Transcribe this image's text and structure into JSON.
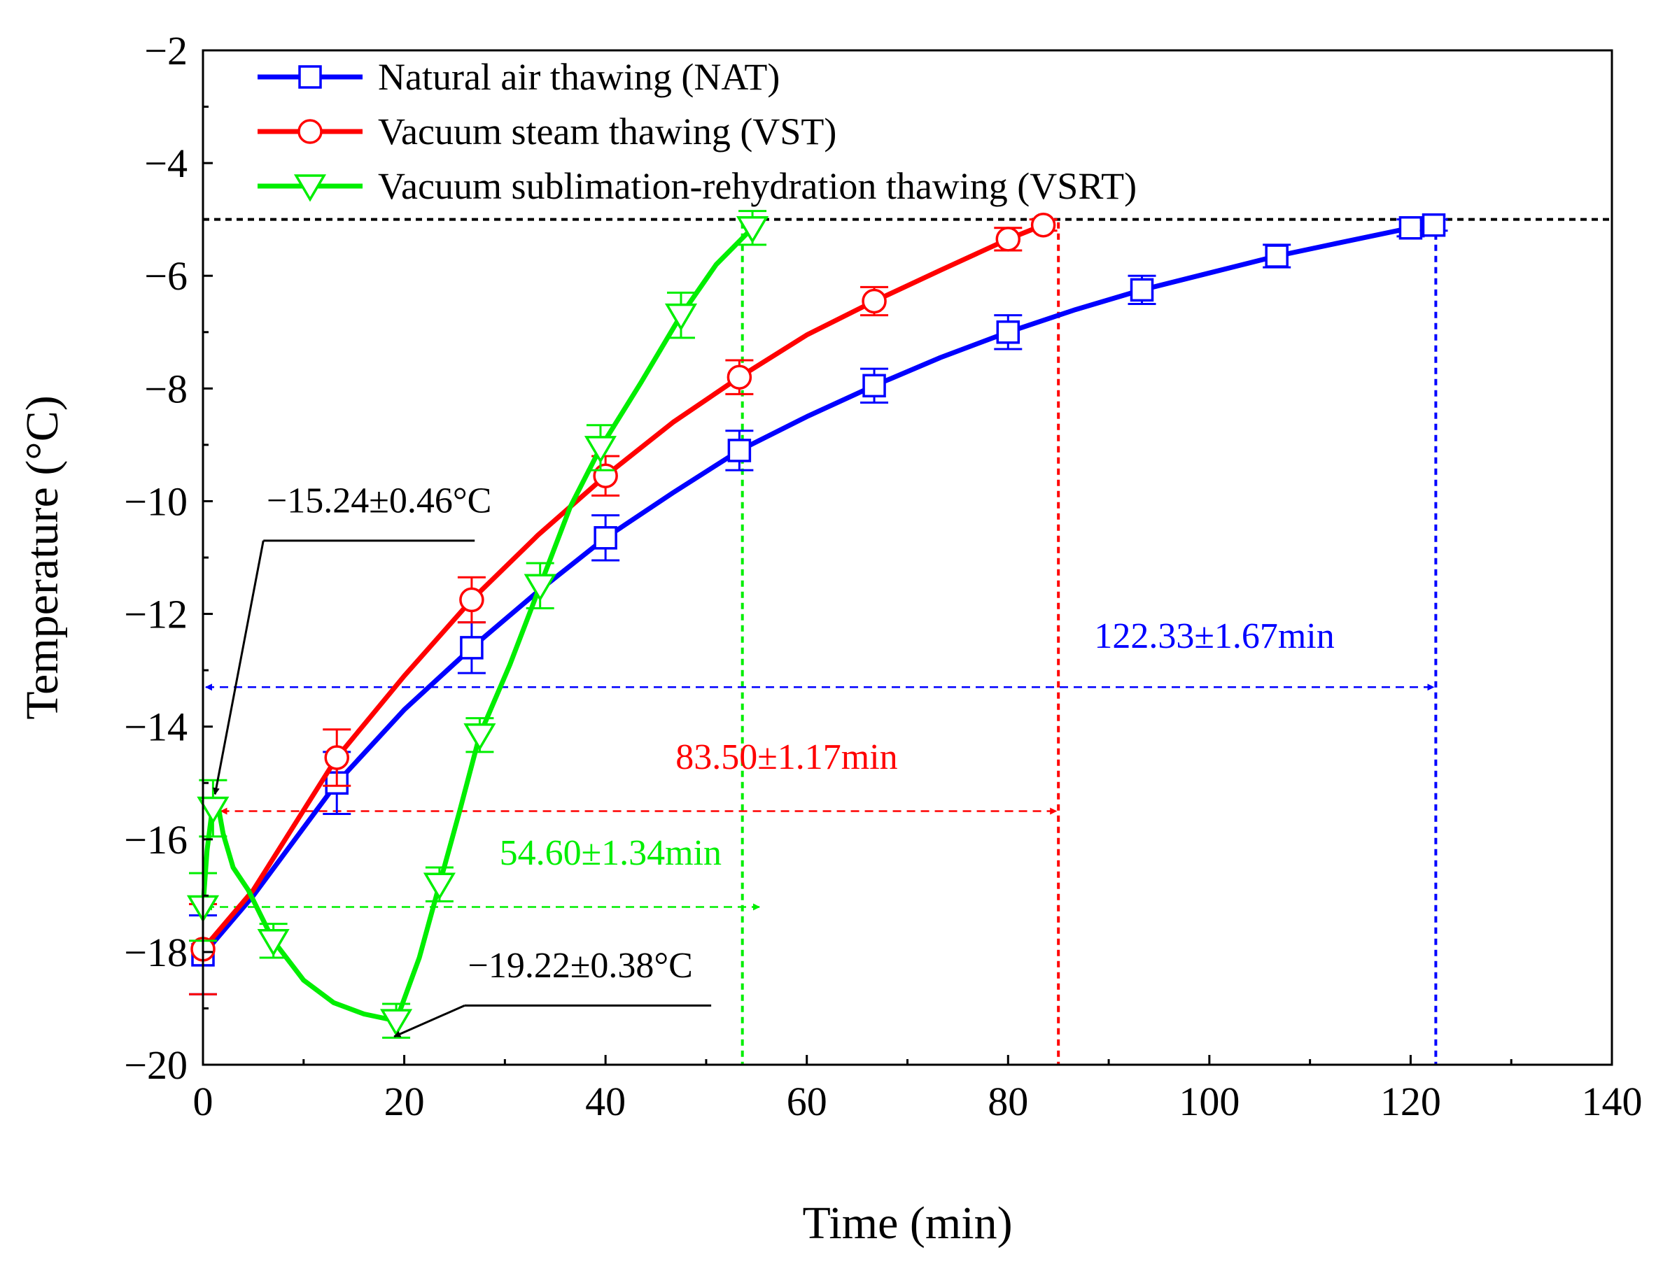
{
  "chart_data": {
    "type": "line",
    "title": "",
    "xlabel": "Time (min)",
    "ylabel": "Temperature (°C)",
    "xlim": [
      0,
      140
    ],
    "ylim": [
      -20,
      -2
    ],
    "xticks": [
      0,
      20,
      40,
      60,
      80,
      100,
      120,
      140
    ],
    "yticks": [
      -20,
      -18,
      -16,
      -14,
      -12,
      -10,
      -8,
      -6,
      -4,
      -2
    ],
    "xtick_labels": [
      "0",
      "20",
      "40",
      "60",
      "80",
      "100",
      "120",
      "140"
    ],
    "ytick_labels": [
      "−20",
      "−18",
      "−16",
      "−14",
      "−12",
      "−10",
      "−8",
      "−6",
      "−4",
      "−2"
    ],
    "grid": false,
    "legend_position": "top-left",
    "series": [
      {
        "name": "Natural air thawing (NAT)",
        "color": "#0000ff",
        "marker": "square",
        "line": [
          [
            0,
            -18.05
          ],
          [
            5,
            -17.0
          ],
          [
            13.3,
            -15.0
          ],
          [
            20,
            -13.7
          ],
          [
            26.7,
            -12.6
          ],
          [
            33.3,
            -11.6
          ],
          [
            40,
            -10.65
          ],
          [
            46.7,
            -9.85
          ],
          [
            53.3,
            -9.1
          ],
          [
            60,
            -8.5
          ],
          [
            66.7,
            -7.95
          ],
          [
            73.3,
            -7.45
          ],
          [
            80,
            -7.0
          ],
          [
            86.7,
            -6.6
          ],
          [
            93.3,
            -6.25
          ],
          [
            100,
            -5.95
          ],
          [
            106.7,
            -5.65
          ],
          [
            113.3,
            -5.4
          ],
          [
            120,
            -5.15
          ],
          [
            122.3,
            -5.1
          ]
        ],
        "points": [
          [
            0,
            -18.05
          ],
          [
            13.3,
            -15.0
          ],
          [
            26.7,
            -12.6
          ],
          [
            40,
            -10.65
          ],
          [
            53.3,
            -9.1
          ],
          [
            66.7,
            -7.95
          ],
          [
            80,
            -7.0
          ],
          [
            93.3,
            -6.25
          ],
          [
            106.7,
            -5.65
          ],
          [
            120,
            -5.15
          ],
          [
            122.3,
            -5.1
          ]
        ],
        "errors": [
          0.7,
          0.55,
          0.45,
          0.4,
          0.35,
          0.3,
          0.3,
          0.25,
          0.2,
          0.15,
          0.1
        ]
      },
      {
        "name": "Vacuum steam thawing (VST)",
        "color": "#ff0000",
        "marker": "circle",
        "line": [
          [
            0,
            -17.95
          ],
          [
            5,
            -16.9
          ],
          [
            13.3,
            -14.55
          ],
          [
            20,
            -13.1
          ],
          [
            26.7,
            -11.75
          ],
          [
            33.3,
            -10.6
          ],
          [
            40,
            -9.55
          ],
          [
            46.7,
            -8.6
          ],
          [
            53.3,
            -7.8
          ],
          [
            60,
            -7.05
          ],
          [
            66.7,
            -6.45
          ],
          [
            73.3,
            -5.9
          ],
          [
            80,
            -5.35
          ],
          [
            83.5,
            -5.1
          ]
        ],
        "points": [
          [
            0,
            -17.95
          ],
          [
            13.3,
            -14.55
          ],
          [
            26.7,
            -11.75
          ],
          [
            40,
            -9.55
          ],
          [
            53.3,
            -7.8
          ],
          [
            66.7,
            -6.45
          ],
          [
            80,
            -5.35
          ],
          [
            83.5,
            -5.1
          ]
        ],
        "errors": [
          0.8,
          0.5,
          0.4,
          0.35,
          0.3,
          0.25,
          0.2,
          0.1
        ]
      },
      {
        "name": "Vacuum sublimation-rehydration thawing (VSRT)",
        "color": "#00ee00",
        "marker": "triangle-down",
        "line": [
          [
            0,
            -17.2
          ],
          [
            0.4,
            -16.2
          ],
          [
            0.9,
            -15.5
          ],
          [
            1.4,
            -15.3
          ],
          [
            2,
            -15.9
          ],
          [
            3,
            -16.5
          ],
          [
            4.5,
            -16.9
          ],
          [
            7,
            -17.8
          ],
          [
            10,
            -18.5
          ],
          [
            13,
            -18.9
          ],
          [
            16,
            -19.1
          ],
          [
            19.2,
            -19.22
          ],
          [
            21.5,
            -18.1
          ],
          [
            23.5,
            -16.8
          ],
          [
            25.5,
            -15.5
          ],
          [
            27.5,
            -14.15
          ],
          [
            30.5,
            -12.9
          ],
          [
            33.5,
            -11.5
          ],
          [
            36.5,
            -10.1
          ],
          [
            39.5,
            -9.05
          ],
          [
            43.5,
            -7.9
          ],
          [
            47.5,
            -6.7
          ],
          [
            51,
            -5.8
          ],
          [
            54.6,
            -5.15
          ]
        ],
        "points": [
          [
            0,
            -17.2
          ],
          [
            1,
            -15.45
          ],
          [
            7,
            -17.8
          ],
          [
            19.2,
            -19.22
          ],
          [
            23.5,
            -16.8
          ],
          [
            27.5,
            -14.15
          ],
          [
            33.5,
            -11.5
          ],
          [
            39.5,
            -9.05
          ],
          [
            47.5,
            -6.7
          ],
          [
            54.6,
            -5.15
          ]
        ],
        "errors": [
          0.6,
          0.5,
          0.3,
          0.3,
          0.3,
          0.3,
          0.4,
          0.4,
          0.4,
          0.3
        ]
      }
    ],
    "threshold_line": {
      "y": -5,
      "color": "#000000"
    },
    "vlines": [
      {
        "x": 53.6,
        "color": "#00ee00"
      },
      {
        "x": 85,
        "color": "#ff0000"
      },
      {
        "x": 122.5,
        "color": "#0000ff"
      }
    ],
    "duration_arrows": [
      {
        "label": "122.33±1.67min",
        "x_start": 0,
        "x_end": 122.5,
        "y": -13.3,
        "label_x": 100.5,
        "label_y": -12.6,
        "color": "#0000ff"
      },
      {
        "label": "83.50±1.17min",
        "x_start": 1.5,
        "x_end": 85,
        "y": -15.5,
        "label_x": 58,
        "label_y": -14.75,
        "color": "#ff0000"
      },
      {
        "label": "54.60±1.34min",
        "x_start": 0,
        "x_end": 55.5,
        "y": -17.2,
        "label_x": 40.5,
        "label_y": -16.45,
        "color": "#00ee00"
      }
    ],
    "annotations": [
      {
        "text": "−15.24±0.46°C",
        "label_x": 17.5,
        "label_y": -10.2,
        "line_from": [
          27,
          -10.7
        ],
        "line_to": [
          6,
          -10.7
        ],
        "arrow_to": [
          1.2,
          -15.2
        ],
        "color": "#000000"
      },
      {
        "text": "−19.22±0.38°C",
        "label_x": 37.5,
        "label_y": -18.45,
        "line_from": [
          50.5,
          -18.95
        ],
        "line_to": [
          26,
          -18.95
        ],
        "arrow_to": [
          19.0,
          -19.5
        ],
        "color": "#000000"
      }
    ]
  }
}
